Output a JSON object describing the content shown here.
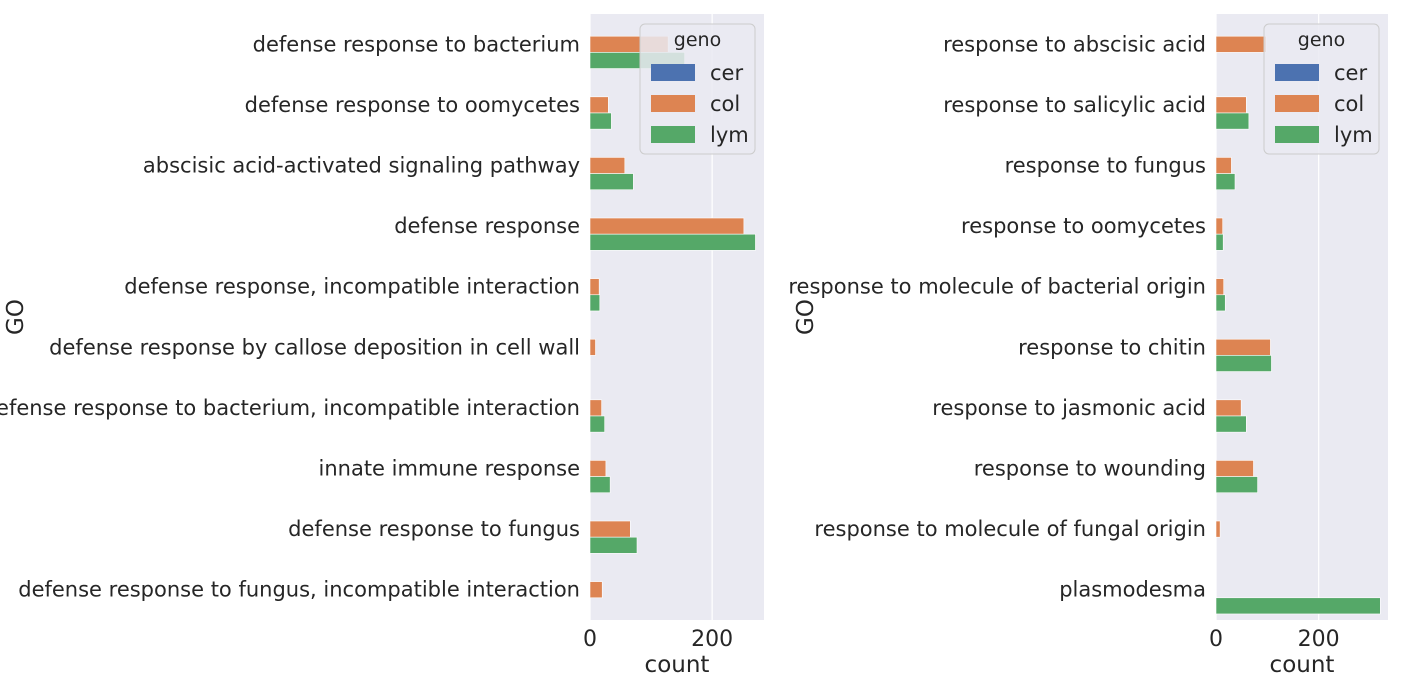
{
  "chart_data": [
    {
      "type": "bar",
      "orientation": "horizontal",
      "xlabel": "count",
      "ylabel": "GO",
      "xlim": [
        0,
        285
      ],
      "xticks": [
        0,
        200
      ],
      "grid": true,
      "legend": {
        "title": "geno",
        "position": "top-right"
      },
      "categories": [
        "defense response to bacterium",
        "defense response to oomycetes",
        "abscisic acid-activated signaling pathway",
        "defense response",
        "defense response, incompatible interaction",
        "defense response by callose deposition in cell wall",
        "defense response to bacterium, incompatible interaction",
        "innate immune response",
        "defense response to fungus",
        "defense response to fungus, incompatible interaction"
      ],
      "series": [
        {
          "name": "cer",
          "color": "#4c72b0",
          "values": [
            0,
            0,
            0,
            0,
            0,
            0,
            0,
            0,
            0,
            0
          ]
        },
        {
          "name": "col",
          "color": "#dd8452",
          "values": [
            128,
            30,
            57,
            252,
            15,
            9,
            19,
            26,
            66,
            20
          ]
        },
        {
          "name": "lym",
          "color": "#55a868",
          "values": [
            155,
            35,
            71,
            271,
            16,
            0,
            24,
            33,
            77,
            0
          ]
        }
      ]
    },
    {
      "type": "bar",
      "orientation": "horizontal",
      "xlabel": "count",
      "ylabel": "GO",
      "xlim": [
        0,
        335
      ],
      "xticks": [
        0,
        200
      ],
      "grid": true,
      "legend": {
        "title": "geno",
        "position": "top-right"
      },
      "categories": [
        "response to abscisic acid",
        "response to salicylic acid",
        "response to fungus",
        "response to oomycetes",
        "response to molecule of bacterial origin",
        "response to chitin",
        "response to jasmonic acid",
        "response to wounding",
        "response to molecule of fungal origin",
        "plasmodesma"
      ],
      "series": [
        {
          "name": "cer",
          "color": "#4c72b0",
          "values": [
            0,
            0,
            0,
            0,
            0,
            0,
            0,
            0,
            0,
            0
          ]
        },
        {
          "name": "col",
          "color": "#dd8452",
          "values": [
            98,
            59,
            30,
            13,
            15,
            106,
            49,
            73,
            8,
            0
          ]
        },
        {
          "name": "lym",
          "color": "#55a868",
          "values": [
            0,
            64,
            37,
            14,
            18,
            108,
            59,
            81,
            0,
            320
          ]
        }
      ]
    }
  ]
}
